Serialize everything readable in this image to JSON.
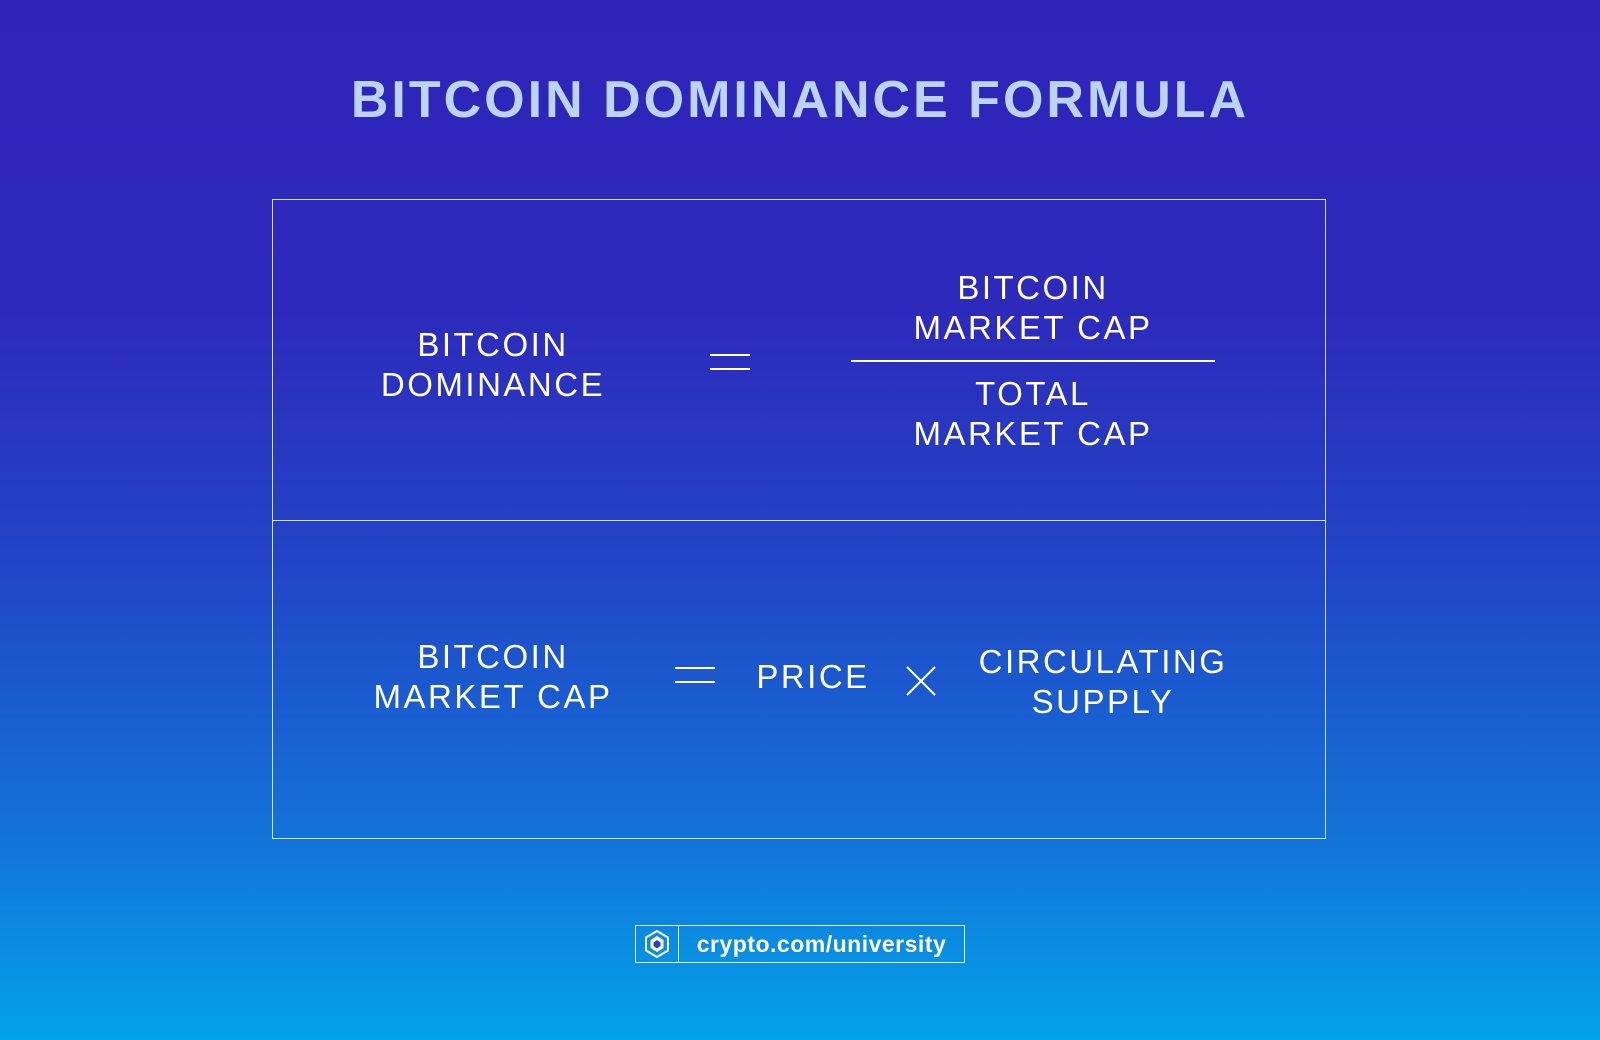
{
  "title": "BITCOIN DOMINANCE FORMULA",
  "dominance_formula": {
    "lhs": [
      "BITCOIN",
      "DOMINANCE"
    ],
    "numerator": [
      "BITCOIN",
      "MARKET CAP"
    ],
    "denominator": [
      "TOTAL",
      "MARKET CAP"
    ],
    "operator": "equals"
  },
  "market_cap_formula": {
    "lhs": [
      "BITCOIN",
      "MARKET CAP"
    ],
    "factor_1": "PRICE",
    "factor_2": [
      "CIRCULATING",
      "SUPPLY"
    ],
    "operators": [
      "equals",
      "times"
    ]
  },
  "footer": {
    "logo_icon": "crypto-com-lion-icon",
    "text": "crypto.com/university"
  },
  "colors": {
    "title": "#bcd4f4",
    "text": "#ffffff",
    "background_top": "#2f24ba",
    "background_bottom": "#02a2ea"
  }
}
